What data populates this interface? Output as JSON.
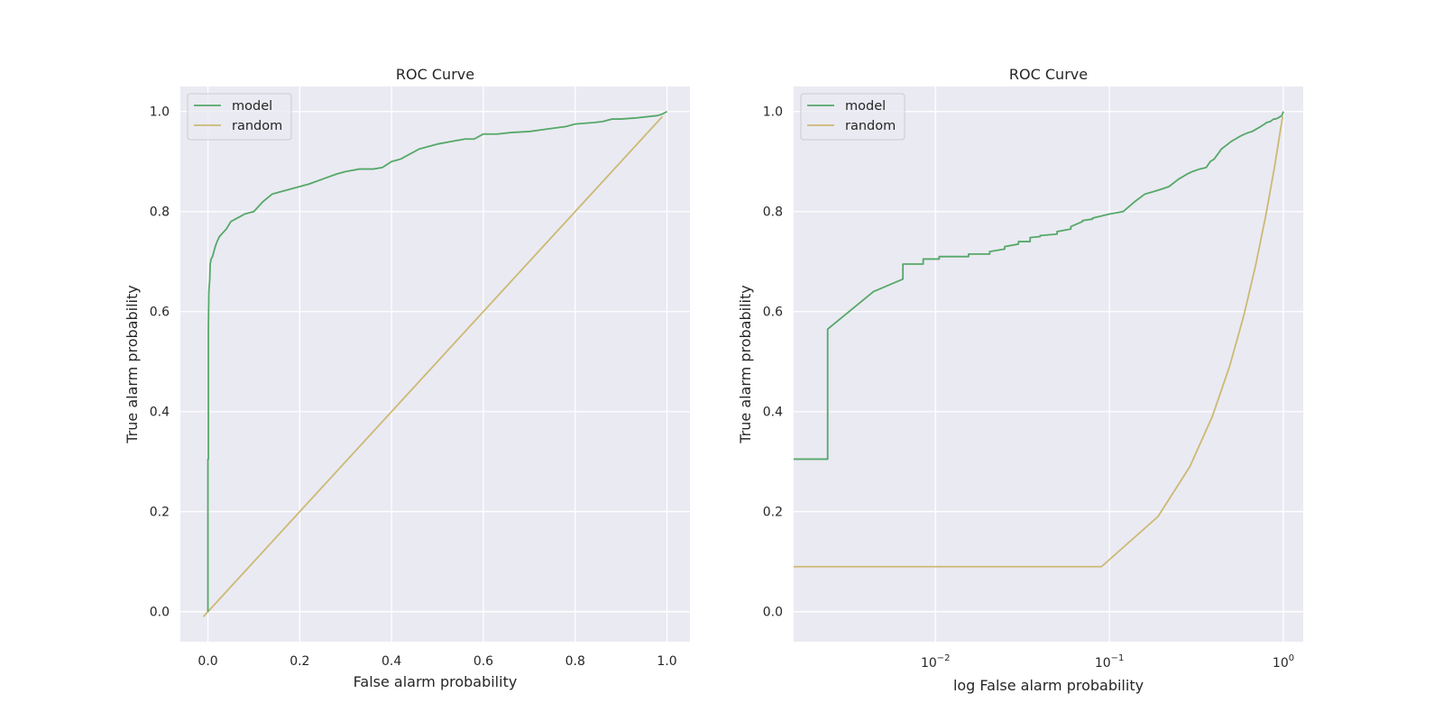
{
  "chart_data": [
    {
      "type": "line",
      "title": "ROC Curve",
      "xlabel": "False alarm probability",
      "ylabel": "True alarm probability",
      "xscale": "linear",
      "xlim": [
        -0.06,
        1.05
      ],
      "ylim": [
        -0.06,
        1.05
      ],
      "xticks": [
        0.0,
        0.2,
        0.4,
        0.6,
        0.8,
        1.0
      ],
      "xtick_labels": [
        "0.0",
        "0.2",
        "0.4",
        "0.6",
        "0.8",
        "1.0"
      ],
      "yticks": [
        0.0,
        0.2,
        0.4,
        0.6,
        0.8,
        1.0
      ],
      "ytick_labels": [
        "0.0",
        "0.2",
        "0.4",
        "0.6",
        "0.8",
        "1.0"
      ],
      "grid": true,
      "legend_position": "top-left",
      "series": [
        {
          "name": "model",
          "color": "#55a868",
          "x": [
            0.0,
            0.0,
            0.001,
            0.001,
            0.002,
            0.004,
            0.005,
            0.007,
            0.01,
            0.013,
            0.016,
            0.02,
            0.025,
            0.03,
            0.035,
            0.04,
            0.05,
            0.06,
            0.07,
            0.08,
            0.1,
            0.12,
            0.14,
            0.16,
            0.18,
            0.2,
            0.22,
            0.25,
            0.28,
            0.3,
            0.33,
            0.36,
            0.38,
            0.4,
            0.42,
            0.44,
            0.46,
            0.48,
            0.5,
            0.53,
            0.56,
            0.58,
            0.6,
            0.63,
            0.66,
            0.7,
            0.74,
            0.78,
            0.8,
            0.84,
            0.86,
            0.88,
            0.9,
            0.93,
            0.96,
            0.98,
            0.99,
            1.0
          ],
          "y": [
            0.0,
            0.305,
            0.305,
            0.565,
            0.64,
            0.665,
            0.695,
            0.705,
            0.71,
            0.72,
            0.73,
            0.74,
            0.75,
            0.755,
            0.76,
            0.765,
            0.78,
            0.785,
            0.79,
            0.795,
            0.8,
            0.82,
            0.835,
            0.84,
            0.845,
            0.85,
            0.855,
            0.865,
            0.875,
            0.88,
            0.885,
            0.885,
            0.888,
            0.9,
            0.905,
            0.915,
            0.925,
            0.93,
            0.935,
            0.94,
            0.945,
            0.945,
            0.955,
            0.955,
            0.958,
            0.96,
            0.965,
            0.97,
            0.975,
            0.978,
            0.98,
            0.985,
            0.985,
            0.987,
            0.99,
            0.992,
            0.995,
            1.0
          ]
        },
        {
          "name": "random",
          "color": "#ccb974",
          "x": [
            -0.01,
            0.99
          ],
          "y": [
            -0.01,
            0.99
          ]
        }
      ]
    },
    {
      "type": "line",
      "title": "ROC Curve",
      "xlabel": "log False alarm probability",
      "ylabel": "True alarm probability",
      "xscale": "log",
      "xlim": [
        0.00153,
        1.3
      ],
      "ylim": [
        -0.06,
        1.05
      ],
      "xticks": [
        0.01,
        0.1,
        1.0
      ],
      "xtick_labels": [
        {
          "base": "10",
          "exp": "−2"
        },
        {
          "base": "10",
          "exp": "−1"
        },
        {
          "base": "10",
          "exp": "0"
        }
      ],
      "yticks": [
        0.0,
        0.2,
        0.4,
        0.6,
        0.8,
        1.0
      ],
      "ytick_labels": [
        "0.0",
        "0.2",
        "0.4",
        "0.6",
        "0.8",
        "1.0"
      ],
      "grid": true,
      "legend_position": "top-left",
      "series": [
        {
          "name": "model",
          "color": "#55a868",
          "x": [
            0.0015,
            0.0016,
            0.002,
            0.0024,
            0.0024,
            0.0044,
            0.0065,
            0.0065,
            0.0085,
            0.0085,
            0.0105,
            0.0105,
            0.0155,
            0.0155,
            0.0205,
            0.0205,
            0.025,
            0.025,
            0.03,
            0.03,
            0.035,
            0.035,
            0.04,
            0.04,
            0.05,
            0.05,
            0.06,
            0.06,
            0.07,
            0.07,
            0.08,
            0.08,
            0.1,
            0.12,
            0.14,
            0.16,
            0.18,
            0.2,
            0.22,
            0.25,
            0.28,
            0.3,
            0.33,
            0.36,
            0.38,
            0.4,
            0.42,
            0.44,
            0.46,
            0.48,
            0.5,
            0.53,
            0.56,
            0.6,
            0.63,
            0.66,
            0.7,
            0.74,
            0.78,
            0.8,
            0.84,
            0.88,
            0.9,
            0.93,
            0.96,
            0.98,
            1.0
          ],
          "y": [
            0.305,
            0.305,
            0.305,
            0.305,
            0.565,
            0.64,
            0.665,
            0.695,
            0.695,
            0.705,
            0.705,
            0.71,
            0.71,
            0.715,
            0.715,
            0.72,
            0.725,
            0.73,
            0.735,
            0.74,
            0.74,
            0.748,
            0.75,
            0.752,
            0.755,
            0.76,
            0.765,
            0.77,
            0.78,
            0.782,
            0.785,
            0.787,
            0.795,
            0.8,
            0.82,
            0.835,
            0.84,
            0.845,
            0.85,
            0.865,
            0.875,
            0.88,
            0.885,
            0.888,
            0.9,
            0.905,
            0.915,
            0.925,
            0.93,
            0.935,
            0.94,
            0.945,
            0.95,
            0.955,
            0.958,
            0.96,
            0.965,
            0.97,
            0.975,
            0.978,
            0.98,
            0.985,
            0.985,
            0.987,
            0.99,
            0.992,
            1.0
          ]
        },
        {
          "name": "random",
          "color": "#ccb974",
          "x": [
            0.0015,
            0.09,
            0.19,
            0.29,
            0.39,
            0.49,
            0.59,
            0.69,
            0.79,
            0.89,
            0.99
          ],
          "y": [
            0.09,
            0.09,
            0.19,
            0.29,
            0.39,
            0.49,
            0.59,
            0.69,
            0.79,
            0.89,
            0.99
          ]
        }
      ]
    }
  ]
}
